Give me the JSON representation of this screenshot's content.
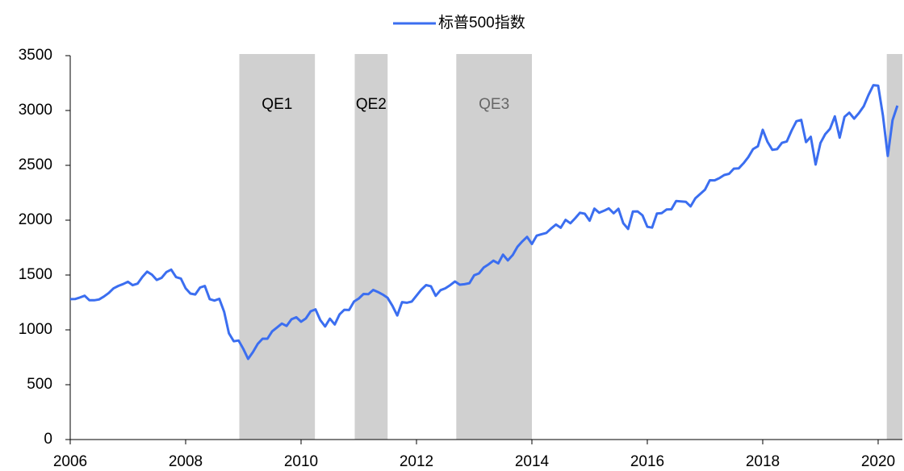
{
  "chart_data": {
    "type": "line",
    "xlim": [
      2006,
      2020.42
    ],
    "xticks": [
      2006,
      2008,
      2010,
      2012,
      2014,
      2016,
      2018,
      2020
    ],
    "ylim": [
      0,
      3500
    ],
    "yticks": [
      0,
      500,
      1000,
      1500,
      2000,
      2500,
      3000,
      3500
    ],
    "shaded_regions": [
      {
        "label": "QE1",
        "start": 2008.93,
        "end": 2010.24,
        "color": "#d0d0d0",
        "label_color": "#000000"
      },
      {
        "label": "QE2",
        "start": 2010.93,
        "end": 2011.5,
        "color": "#d0d0d0",
        "label_color": "#000000"
      },
      {
        "label": "QE3",
        "start": 2012.69,
        "end": 2014.0,
        "color": "#d0d0d0",
        "label_color": "#666666"
      },
      {
        "start": 2020.15,
        "end": 2020.42,
        "color": "#d0d0d0"
      }
    ],
    "x": [
      2006,
      2006.083,
      2006.167,
      2006.25,
      2006.333,
      2006.417,
      2006.5,
      2006.583,
      2006.667,
      2006.75,
      2006.833,
      2006.917,
      2007,
      2007.083,
      2007.167,
      2007.25,
      2007.333,
      2007.417,
      2007.5,
      2007.583,
      2007.667,
      2007.75,
      2007.833,
      2007.917,
      2008,
      2008.083,
      2008.167,
      2008.25,
      2008.333,
      2008.417,
      2008.5,
      2008.583,
      2008.667,
      2008.75,
      2008.833,
      2008.917,
      2009,
      2009.083,
      2009.167,
      2009.25,
      2009.333,
      2009.417,
      2009.5,
      2009.583,
      2009.667,
      2009.75,
      2009.833,
      2009.917,
      2010,
      2010.083,
      2010.167,
      2010.25,
      2010.333,
      2010.417,
      2010.5,
      2010.583,
      2010.667,
      2010.75,
      2010.833,
      2010.917,
      2011,
      2011.083,
      2011.167,
      2011.25,
      2011.333,
      2011.417,
      2011.5,
      2011.583,
      2011.667,
      2011.75,
      2011.833,
      2011.917,
      2012,
      2012.083,
      2012.167,
      2012.25,
      2012.333,
      2012.417,
      2012.5,
      2012.583,
      2012.667,
      2012.75,
      2012.833,
      2012.917,
      2013,
      2013.083,
      2013.167,
      2013.25,
      2013.333,
      2013.417,
      2013.5,
      2013.583,
      2013.667,
      2013.75,
      2013.833,
      2013.917,
      2014,
      2014.083,
      2014.167,
      2014.25,
      2014.333,
      2014.417,
      2014.5,
      2014.583,
      2014.667,
      2014.75,
      2014.833,
      2014.917,
      2015,
      2015.083,
      2015.167,
      2015.25,
      2015.333,
      2015.417,
      2015.5,
      2015.583,
      2015.667,
      2015.75,
      2015.833,
      2015.917,
      2016,
      2016.083,
      2016.167,
      2016.25,
      2016.333,
      2016.417,
      2016.5,
      2016.583,
      2016.667,
      2016.75,
      2016.833,
      2016.917,
      2017,
      2017.083,
      2017.167,
      2017.25,
      2017.333,
      2017.417,
      2017.5,
      2017.583,
      2017.667,
      2017.75,
      2017.833,
      2017.917,
      2018,
      2018.083,
      2018.167,
      2018.25,
      2018.333,
      2018.417,
      2018.5,
      2018.583,
      2018.667,
      2018.75,
      2018.833,
      2018.917,
      2019,
      2019.083,
      2019.167,
      2019.25,
      2019.333,
      2019.417,
      2019.5,
      2019.583,
      2019.667,
      2019.75,
      2019.833,
      2019.917,
      2020,
      2020.083,
      2020.167,
      2020.25,
      2020.333
    ],
    "series": [
      {
        "name": "标普500指数",
        "color": "#3b6ef0",
        "values": [
          1280,
          1281,
          1295,
          1311,
          1270,
          1270,
          1277,
          1304,
          1336,
          1378,
          1401,
          1418,
          1438,
          1407,
          1421,
          1482,
          1531,
          1503,
          1455,
          1474,
          1527,
          1549,
          1481,
          1468,
          1379,
          1331,
          1323,
          1386,
          1400,
          1280,
          1267,
          1283,
          1165,
          969,
          896,
          903,
          826,
          735,
          798,
          873,
          919,
          919,
          987,
          1021,
          1057,
          1036,
          1096,
          1115,
          1074,
          1104,
          1169,
          1187,
          1089,
          1031,
          1102,
          1049,
          1141,
          1183,
          1181,
          1258,
          1286,
          1327,
          1326,
          1364,
          1345,
          1321,
          1292,
          1219,
          1131,
          1253,
          1247,
          1258,
          1312,
          1366,
          1408,
          1398,
          1310,
          1362,
          1379,
          1407,
          1441,
          1412,
          1416,
          1426,
          1498,
          1515,
          1569,
          1598,
          1631,
          1606,
          1686,
          1633,
          1682,
          1757,
          1806,
          1848,
          1783,
          1859,
          1872,
          1884,
          1924,
          1960,
          1931,
          2003,
          1972,
          2018,
          2068,
          2059,
          1995,
          2105,
          2068,
          2086,
          2107,
          2063,
          2104,
          1972,
          1920,
          2079,
          2080,
          2044,
          1940,
          1932,
          2060,
          2065,
          2097,
          2099,
          2174,
          2171,
          2168,
          2126,
          2199,
          2239,
          2279,
          2364,
          2363,
          2384,
          2412,
          2423,
          2470,
          2472,
          2519,
          2575,
          2648,
          2674,
          2824,
          2714,
          2641,
          2648,
          2705,
          2718,
          2816,
          2902,
          2914,
          2712,
          2760,
          2507,
          2704,
          2784,
          2834,
          2946,
          2752,
          2942,
          2980,
          2926,
          2977,
          3038,
          3141,
          3231,
          3226,
          2954,
          2585,
          2912,
          3044
        ]
      }
    ]
  }
}
